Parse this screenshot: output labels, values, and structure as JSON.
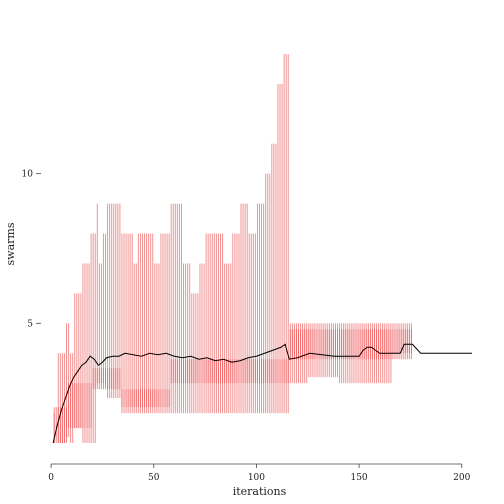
{
  "chart_data": {
    "type": "line",
    "title": "",
    "xlabel": "iterations",
    "ylabel": "swarms",
    "xlim": [
      -2,
      205
    ],
    "ylim": [
      0.5,
      14.8
    ],
    "xticks": [
      0,
      50,
      100,
      150,
      200
    ],
    "yticks": [
      5,
      10
    ],
    "grid": false,
    "colors": {
      "range": "#f08080",
      "range_dense": "#f2595a",
      "mean_line": "#000000"
    },
    "mean_series": {
      "x": [
        1,
        3,
        5,
        7,
        9,
        11,
        13,
        15,
        17,
        19,
        21,
        23,
        25,
        27,
        30,
        33,
        36,
        40,
        44,
        48,
        52,
        56,
        60,
        64,
        68,
        72,
        76,
        80,
        84,
        88,
        92,
        96,
        100,
        104,
        108,
        112,
        114,
        116,
        120,
        126,
        132,
        138,
        144,
        150,
        152,
        154,
        156,
        160,
        166,
        170,
        172,
        176,
        180,
        190,
        200,
        205
      ],
      "y": [
        1.0,
        1.6,
        2.1,
        2.5,
        2.9,
        3.2,
        3.4,
        3.6,
        3.7,
        3.9,
        3.8,
        3.6,
        3.7,
        3.85,
        3.9,
        3.9,
        4.0,
        3.95,
        3.9,
        4.0,
        3.95,
        4.0,
        3.9,
        3.85,
        3.9,
        3.8,
        3.85,
        3.75,
        3.8,
        3.7,
        3.75,
        3.85,
        3.9,
        4.0,
        4.1,
        4.2,
        4.3,
        3.8,
        3.85,
        4.0,
        3.95,
        3.9,
        3.9,
        3.9,
        4.1,
        4.2,
        4.2,
        4.0,
        4.0,
        4.0,
        4.3,
        4.3,
        4.0,
        4.0,
        4.0,
        4.0
      ]
    },
    "ranges": [
      {
        "x": [
          1,
          2
        ],
        "low": 1.0,
        "high": 2.0
      },
      {
        "x": [
          3,
          7
        ],
        "low": 1.0,
        "high": 4.0
      },
      {
        "x": [
          7,
          9
        ],
        "low": 1.2,
        "high": 5.0
      },
      {
        "x": [
          9,
          11
        ],
        "low": 1.0,
        "high": 4.0
      },
      {
        "x": [
          11,
          15
        ],
        "low": 1.5,
        "high": 6.0
      },
      {
        "x": [
          15,
          19
        ],
        "low": 1.0,
        "high": 7.0
      },
      {
        "x": [
          19,
          22
        ],
        "low": 1.0,
        "high": 8.0
      },
      {
        "x": [
          22,
          23
        ],
        "low": 3.0,
        "high": 9.0
      },
      {
        "x": [
          23,
          25
        ],
        "low": 3.0,
        "high": 7.0
      },
      {
        "x": [
          25,
          27
        ],
        "low": 3.0,
        "high": 8.0
      },
      {
        "x": [
          27,
          34
        ],
        "low": 2.5,
        "high": 9.0
      },
      {
        "x": [
          34,
          40
        ],
        "low": 2.0,
        "high": 8.0
      },
      {
        "x": [
          40,
          42
        ],
        "low": 2.0,
        "high": 7.0
      },
      {
        "x": [
          42,
          50
        ],
        "low": 2.0,
        "high": 8.0
      },
      {
        "x": [
          50,
          53
        ],
        "low": 2.0,
        "high": 7.0
      },
      {
        "x": [
          53,
          58
        ],
        "low": 2.0,
        "high": 8.0
      },
      {
        "x": [
          58,
          64
        ],
        "low": 2.0,
        "high": 9.0
      },
      {
        "x": [
          64,
          68
        ],
        "low": 2.0,
        "high": 7.0
      },
      {
        "x": [
          68,
          72
        ],
        "low": 2.0,
        "high": 6.0
      },
      {
        "x": [
          72,
          75
        ],
        "low": 2.0,
        "high": 7.0
      },
      {
        "x": [
          75,
          80
        ],
        "low": 2.0,
        "high": 8.0
      },
      {
        "x": [
          80,
          84
        ],
        "low": 2.0,
        "high": 8.0
      },
      {
        "x": [
          84,
          88
        ],
        "low": 2.0,
        "high": 7.0
      },
      {
        "x": [
          88,
          92
        ],
        "low": 2.0,
        "high": 8.0
      },
      {
        "x": [
          92,
          96
        ],
        "low": 2.0,
        "high": 9.0
      },
      {
        "x": [
          96,
          100
        ],
        "low": 2.0,
        "high": 8.0
      },
      {
        "x": [
          100,
          104
        ],
        "low": 2.0,
        "high": 9.0
      },
      {
        "x": [
          104,
          107
        ],
        "low": 2.0,
        "high": 10.0
      },
      {
        "x": [
          107,
          110
        ],
        "low": 2.0,
        "high": 11.0
      },
      {
        "x": [
          110,
          113
        ],
        "low": 2.0,
        "high": 13.0
      },
      {
        "x": [
          113,
          116
        ],
        "low": 2.0,
        "high": 14.0
      },
      {
        "x": [
          116,
          125
        ],
        "low": 3.0,
        "high": 5.0
      },
      {
        "x": [
          125,
          140
        ],
        "low": 3.2,
        "high": 5.0
      },
      {
        "x": [
          140,
          150
        ],
        "low": 3.0,
        "high": 5.0
      },
      {
        "x": [
          150,
          160
        ],
        "low": 3.0,
        "high": 5.0
      },
      {
        "x": [
          160,
          166
        ],
        "low": 3.0,
        "high": 5.0
      },
      {
        "x": [
          166,
          176
        ],
        "low": 4.0,
        "high": 5.0
      }
    ],
    "dense_bands": [
      {
        "x": [
          1,
          8
        ],
        "low": 1.0,
        "high": 2.2
      },
      {
        "x": [
          8,
          20
        ],
        "low": 1.5,
        "high": 3.0
      },
      {
        "x": [
          20,
          34
        ],
        "low": 2.8,
        "high": 3.5
      },
      {
        "x": [
          34,
          58
        ],
        "low": 2.2,
        "high": 2.8
      },
      {
        "x": [
          58,
          116
        ],
        "low": 3.0,
        "high": 3.8
      },
      {
        "x": [
          116,
          176
        ],
        "low": 3.8,
        "high": 4.8
      }
    ]
  }
}
